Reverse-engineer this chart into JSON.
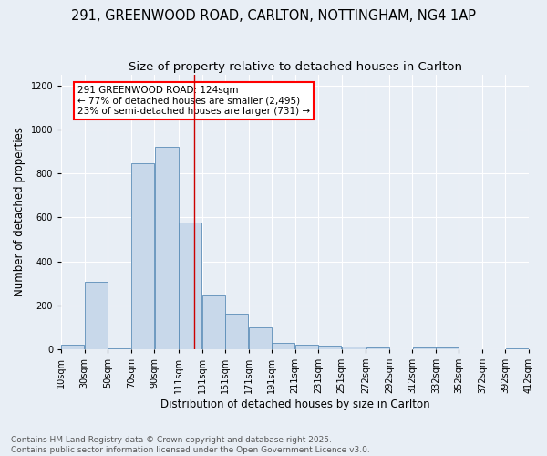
{
  "title1": "291, GREENWOOD ROAD, CARLTON, NOTTINGHAM, NG4 1AP",
  "title2": "Size of property relative to detached houses in Carlton",
  "xlabel": "Distribution of detached houses by size in Carlton",
  "ylabel": "Number of detached properties",
  "bar_color": "#c8d8ea",
  "bar_edge_color": "#5b8db8",
  "background_color": "#e8eef5",
  "bins": [
    10,
    30,
    50,
    70,
    90,
    111,
    131,
    151,
    171,
    191,
    211,
    231,
    251,
    272,
    292,
    312,
    332,
    352,
    372,
    392,
    412
  ],
  "values": [
    20,
    305,
    5,
    845,
    920,
    575,
    245,
    160,
    100,
    30,
    20,
    15,
    13,
    10,
    0,
    8,
    8,
    0,
    0,
    5
  ],
  "tick_labels": [
    "10sqm",
    "30sqm",
    "50sqm",
    "70sqm",
    "90sqm",
    "111sqm",
    "131sqm",
    "151sqm",
    "171sqm",
    "191sqm",
    "211sqm",
    "231sqm",
    "251sqm",
    "272sqm",
    "292sqm",
    "312sqm",
    "332sqm",
    "352sqm",
    "372sqm",
    "392sqm",
    "412sqm"
  ],
  "vline_x": 124,
  "vline_color": "#cc0000",
  "annotation_text": "291 GREENWOOD ROAD: 124sqm\n← 77% of detached houses are smaller (2,495)\n23% of semi-detached houses are larger (731) →",
  "footer_text": "Contains HM Land Registry data © Crown copyright and database right 2025.\nContains public sector information licensed under the Open Government Licence v3.0.",
  "ylim": [
    0,
    1250
  ],
  "yticks": [
    0,
    200,
    400,
    600,
    800,
    1000,
    1200
  ],
  "grid_color": "#ffffff",
  "title_fontsize": 10.5,
  "subtitle_fontsize": 9.5,
  "axis_fontsize": 8.5,
  "tick_fontsize": 7,
  "footer_fontsize": 6.5,
  "annotation_fontsize": 7.5
}
